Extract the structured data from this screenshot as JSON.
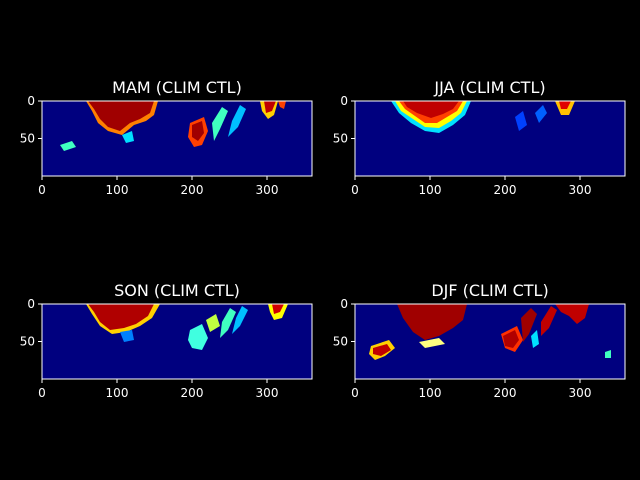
{
  "chart_data": [
    {
      "type": "image",
      "title": "MAM (CLIM CTL)",
      "xlim": [
        0,
        360
      ],
      "ylim": [
        100,
        0
      ],
      "xticks": [
        0,
        100,
        200,
        300
      ],
      "yticks": [
        0,
        50
      ],
      "colormap": "jet"
    },
    {
      "type": "image",
      "title": "JJA (CLIM CTL)",
      "xlim": [
        0,
        360
      ],
      "ylim": [
        100,
        0
      ],
      "xticks": [
        0,
        100,
        200,
        300
      ],
      "yticks": [
        0,
        50
      ],
      "colormap": "jet"
    },
    {
      "type": "image",
      "title": "SON (CLIM CTL)",
      "xlim": [
        0,
        360
      ],
      "ylim": [
        100,
        0
      ],
      "xticks": [
        0,
        100,
        200,
        300
      ],
      "yticks": [
        0,
        50
      ],
      "colormap": "jet"
    },
    {
      "type": "image",
      "title": "DJF (CLIM CTL)",
      "xlim": [
        0,
        360
      ],
      "ylim": [
        100,
        0
      ],
      "xticks": [
        0,
        100,
        200,
        300
      ],
      "yticks": [
        0,
        50
      ],
      "colormap": "jet"
    }
  ]
}
